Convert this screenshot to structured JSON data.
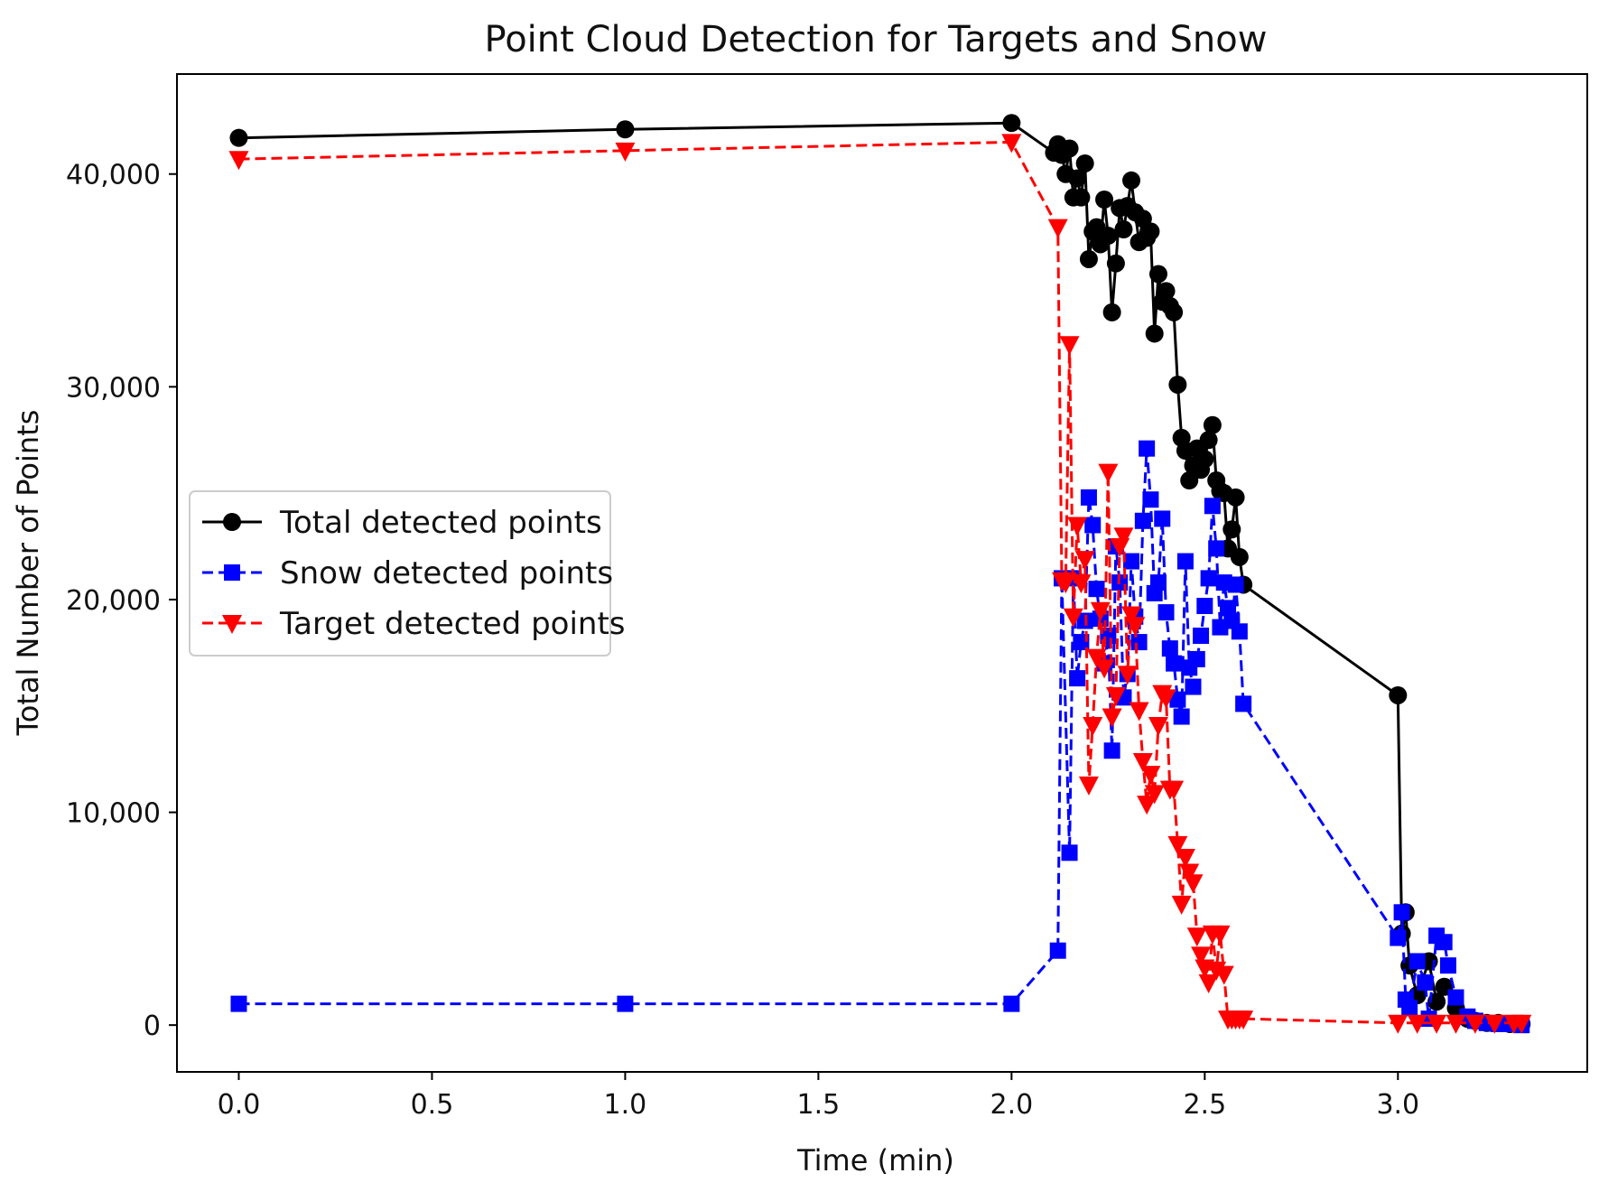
{
  "chart_data": {
    "type": "line",
    "title": "Point Cloud Detection for Targets and Snow",
    "xlabel": "Time (min)",
    "ylabel": "Total Number of Points",
    "xlim": [
      -0.16,
      3.49
    ],
    "ylim": [
      -2200,
      44700
    ],
    "xticks": [
      0.0,
      0.5,
      1.0,
      1.5,
      2.0,
      2.5,
      3.0
    ],
    "xtick_labels": [
      "0.0",
      "0.5",
      "1.0",
      "1.5",
      "2.0",
      "2.5",
      "3.0"
    ],
    "yticks": [
      0,
      10000,
      20000,
      30000,
      40000
    ],
    "ytick_labels": [
      "0",
      "10,000",
      "20,000",
      "30,000",
      "40,000"
    ],
    "grid": false,
    "legend_position": "center-left",
    "series": [
      {
        "name": "Total detected points",
        "color": "#000000",
        "line_style": "solid",
        "marker": "circle",
        "x": [
          0.0,
          1.0,
          2.0,
          2.11,
          2.12,
          2.13,
          2.14,
          2.15,
          2.16,
          2.17,
          2.18,
          2.19,
          2.2,
          2.21,
          2.22,
          2.23,
          2.24,
          2.25,
          2.26,
          2.27,
          2.28,
          2.29,
          2.3,
          2.31,
          2.32,
          2.33,
          2.34,
          2.35,
          2.36,
          2.37,
          2.38,
          2.39,
          2.4,
          2.41,
          2.42,
          2.43,
          2.44,
          2.45,
          2.46,
          2.47,
          2.48,
          2.49,
          2.5,
          2.51,
          2.52,
          2.53,
          2.54,
          2.55,
          2.56,
          2.57,
          2.58,
          2.59,
          2.6,
          3.0,
          3.01,
          3.02,
          3.03,
          3.05,
          3.08,
          3.1,
          3.12,
          3.15,
          3.18,
          3.2,
          3.23,
          3.26,
          3.29,
          3.32
        ],
        "y": [
          41700,
          42100,
          42400,
          41000,
          41400,
          40900,
          40000,
          41200,
          38900,
          39800,
          38900,
          40500,
          36000,
          37300,
          37500,
          36700,
          38800,
          37100,
          33500,
          35800,
          38400,
          37400,
          38500,
          39700,
          38200,
          36800,
          37900,
          37000,
          37300,
          32500,
          35300,
          34000,
          34500,
          33800,
          33500,
          30100,
          27600,
          27000,
          25600,
          26300,
          27100,
          26100,
          26600,
          27500,
          28200,
          25600,
          25100,
          25000,
          22400,
          23300,
          24800,
          22000,
          20700,
          15500,
          4300,
          5300,
          2800,
          1400,
          3000,
          1100,
          1800,
          800,
          300,
          200,
          100,
          100,
          50,
          50
        ]
      },
      {
        "name": "Snow detected points",
        "color": "#0000ff",
        "line_style": "dashed",
        "marker": "square",
        "x": [
          0.0,
          1.0,
          2.0,
          2.12,
          2.13,
          2.15,
          2.16,
          2.17,
          2.18,
          2.19,
          2.2,
          2.21,
          2.22,
          2.23,
          2.24,
          2.25,
          2.26,
          2.27,
          2.28,
          2.29,
          2.3,
          2.31,
          2.32,
          2.33,
          2.34,
          2.35,
          2.36,
          2.37,
          2.38,
          2.39,
          2.4,
          2.41,
          2.42,
          2.43,
          2.44,
          2.45,
          2.46,
          2.47,
          2.48,
          2.49,
          2.5,
          2.51,
          2.52,
          2.53,
          2.54,
          2.55,
          2.56,
          2.57,
          2.58,
          2.59,
          2.6,
          3.0,
          3.01,
          3.02,
          3.03,
          3.05,
          3.07,
          3.08,
          3.1,
          3.12,
          3.13,
          3.15,
          3.18,
          3.2,
          3.23,
          3.26,
          3.29,
          3.32
        ],
        "y": [
          1000,
          1000,
          1000,
          3500,
          21000,
          8100,
          21000,
          16300,
          18000,
          19000,
          24800,
          23500,
          20500,
          19100,
          17000,
          18300,
          12900,
          22500,
          20800,
          15400,
          16500,
          21800,
          19200,
          18000,
          23700,
          27100,
          24700,
          20300,
          20800,
          23800,
          19400,
          17700,
          17000,
          15300,
          14500,
          21800,
          16800,
          15900,
          17200,
          18300,
          19700,
          21000,
          24400,
          22400,
          18700,
          20800,
          19600,
          19000,
          20700,
          18500,
          15100,
          4100,
          5300,
          1200,
          800,
          3000,
          2000,
          300,
          4200,
          3900,
          2800,
          1300,
          400,
          200,
          100,
          50,
          50,
          0
        ]
      },
      {
        "name": "Target detected points",
        "color": "#ff0000",
        "line_style": "dashed",
        "marker": "triangle-down",
        "x": [
          0.0,
          1.0,
          2.0,
          2.12,
          2.13,
          2.14,
          2.15,
          2.16,
          2.17,
          2.18,
          2.19,
          2.2,
          2.21,
          2.22,
          2.23,
          2.24,
          2.25,
          2.26,
          2.27,
          2.28,
          2.29,
          2.3,
          2.31,
          2.32,
          2.33,
          2.34,
          2.35,
          2.36,
          2.37,
          2.38,
          2.39,
          2.4,
          2.41,
          2.42,
          2.43,
          2.44,
          2.45,
          2.46,
          2.47,
          2.48,
          2.49,
          2.5,
          2.51,
          2.52,
          2.53,
          2.54,
          2.55,
          2.56,
          2.57,
          2.58,
          2.59,
          2.6,
          3.0,
          3.05,
          3.1,
          3.15,
          3.2,
          3.25,
          3.3,
          3.32
        ],
        "y": [
          40700,
          41100,
          41500,
          37500,
          20900,
          20800,
          32000,
          19200,
          23500,
          20800,
          21900,
          11300,
          14100,
          17300,
          19500,
          16800,
          26000,
          14500,
          15500,
          22500,
          23000,
          16500,
          19300,
          18800,
          14800,
          12400,
          10400,
          11800,
          10900,
          14100,
          15600,
          15400,
          11100,
          11100,
          8500,
          5700,
          7900,
          7200,
          6700,
          4200,
          3300,
          2700,
          2000,
          4300,
          2600,
          4300,
          2400,
          300,
          300,
          300,
          300,
          300,
          100,
          100,
          100,
          100,
          100,
          100,
          100,
          100
        ]
      }
    ]
  }
}
